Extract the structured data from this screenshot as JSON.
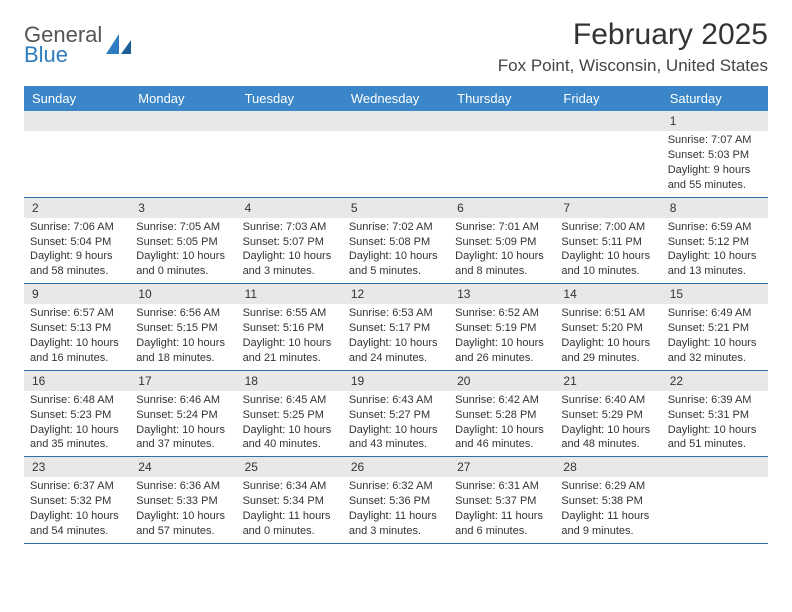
{
  "logo": {
    "line1": "General",
    "line2": "Blue"
  },
  "title": "February 2025",
  "location": "Fox Point, Wisconsin, United States",
  "colors": {
    "header_bg": "#3a86c8",
    "header_text": "#ffffff",
    "daynum_bg": "#e8e8e8",
    "row_border": "#2f6ea8",
    "logo_gray": "#555555",
    "logo_blue": "#2f7bbf",
    "body_text": "#333333"
  },
  "weekdays": [
    "Sunday",
    "Monday",
    "Tuesday",
    "Wednesday",
    "Thursday",
    "Friday",
    "Saturday"
  ],
  "weeks": [
    [
      null,
      null,
      null,
      null,
      null,
      null,
      {
        "n": "1",
        "sunrise": "Sunrise: 7:07 AM",
        "sunset": "Sunset: 5:03 PM",
        "daylight": "Daylight: 9 hours and 55 minutes."
      }
    ],
    [
      {
        "n": "2",
        "sunrise": "Sunrise: 7:06 AM",
        "sunset": "Sunset: 5:04 PM",
        "daylight": "Daylight: 9 hours and 58 minutes."
      },
      {
        "n": "3",
        "sunrise": "Sunrise: 7:05 AM",
        "sunset": "Sunset: 5:05 PM",
        "daylight": "Daylight: 10 hours and 0 minutes."
      },
      {
        "n": "4",
        "sunrise": "Sunrise: 7:03 AM",
        "sunset": "Sunset: 5:07 PM",
        "daylight": "Daylight: 10 hours and 3 minutes."
      },
      {
        "n": "5",
        "sunrise": "Sunrise: 7:02 AM",
        "sunset": "Sunset: 5:08 PM",
        "daylight": "Daylight: 10 hours and 5 minutes."
      },
      {
        "n": "6",
        "sunrise": "Sunrise: 7:01 AM",
        "sunset": "Sunset: 5:09 PM",
        "daylight": "Daylight: 10 hours and 8 minutes."
      },
      {
        "n": "7",
        "sunrise": "Sunrise: 7:00 AM",
        "sunset": "Sunset: 5:11 PM",
        "daylight": "Daylight: 10 hours and 10 minutes."
      },
      {
        "n": "8",
        "sunrise": "Sunrise: 6:59 AM",
        "sunset": "Sunset: 5:12 PM",
        "daylight": "Daylight: 10 hours and 13 minutes."
      }
    ],
    [
      {
        "n": "9",
        "sunrise": "Sunrise: 6:57 AM",
        "sunset": "Sunset: 5:13 PM",
        "daylight": "Daylight: 10 hours and 16 minutes."
      },
      {
        "n": "10",
        "sunrise": "Sunrise: 6:56 AM",
        "sunset": "Sunset: 5:15 PM",
        "daylight": "Daylight: 10 hours and 18 minutes."
      },
      {
        "n": "11",
        "sunrise": "Sunrise: 6:55 AM",
        "sunset": "Sunset: 5:16 PM",
        "daylight": "Daylight: 10 hours and 21 minutes."
      },
      {
        "n": "12",
        "sunrise": "Sunrise: 6:53 AM",
        "sunset": "Sunset: 5:17 PM",
        "daylight": "Daylight: 10 hours and 24 minutes."
      },
      {
        "n": "13",
        "sunrise": "Sunrise: 6:52 AM",
        "sunset": "Sunset: 5:19 PM",
        "daylight": "Daylight: 10 hours and 26 minutes."
      },
      {
        "n": "14",
        "sunrise": "Sunrise: 6:51 AM",
        "sunset": "Sunset: 5:20 PM",
        "daylight": "Daylight: 10 hours and 29 minutes."
      },
      {
        "n": "15",
        "sunrise": "Sunrise: 6:49 AM",
        "sunset": "Sunset: 5:21 PM",
        "daylight": "Daylight: 10 hours and 32 minutes."
      }
    ],
    [
      {
        "n": "16",
        "sunrise": "Sunrise: 6:48 AM",
        "sunset": "Sunset: 5:23 PM",
        "daylight": "Daylight: 10 hours and 35 minutes."
      },
      {
        "n": "17",
        "sunrise": "Sunrise: 6:46 AM",
        "sunset": "Sunset: 5:24 PM",
        "daylight": "Daylight: 10 hours and 37 minutes."
      },
      {
        "n": "18",
        "sunrise": "Sunrise: 6:45 AM",
        "sunset": "Sunset: 5:25 PM",
        "daylight": "Daylight: 10 hours and 40 minutes."
      },
      {
        "n": "19",
        "sunrise": "Sunrise: 6:43 AM",
        "sunset": "Sunset: 5:27 PM",
        "daylight": "Daylight: 10 hours and 43 minutes."
      },
      {
        "n": "20",
        "sunrise": "Sunrise: 6:42 AM",
        "sunset": "Sunset: 5:28 PM",
        "daylight": "Daylight: 10 hours and 46 minutes."
      },
      {
        "n": "21",
        "sunrise": "Sunrise: 6:40 AM",
        "sunset": "Sunset: 5:29 PM",
        "daylight": "Daylight: 10 hours and 48 minutes."
      },
      {
        "n": "22",
        "sunrise": "Sunrise: 6:39 AM",
        "sunset": "Sunset: 5:31 PM",
        "daylight": "Daylight: 10 hours and 51 minutes."
      }
    ],
    [
      {
        "n": "23",
        "sunrise": "Sunrise: 6:37 AM",
        "sunset": "Sunset: 5:32 PM",
        "daylight": "Daylight: 10 hours and 54 minutes."
      },
      {
        "n": "24",
        "sunrise": "Sunrise: 6:36 AM",
        "sunset": "Sunset: 5:33 PM",
        "daylight": "Daylight: 10 hours and 57 minutes."
      },
      {
        "n": "25",
        "sunrise": "Sunrise: 6:34 AM",
        "sunset": "Sunset: 5:34 PM",
        "daylight": "Daylight: 11 hours and 0 minutes."
      },
      {
        "n": "26",
        "sunrise": "Sunrise: 6:32 AM",
        "sunset": "Sunset: 5:36 PM",
        "daylight": "Daylight: 11 hours and 3 minutes."
      },
      {
        "n": "27",
        "sunrise": "Sunrise: 6:31 AM",
        "sunset": "Sunset: 5:37 PM",
        "daylight": "Daylight: 11 hours and 6 minutes."
      },
      {
        "n": "28",
        "sunrise": "Sunrise: 6:29 AM",
        "sunset": "Sunset: 5:38 PM",
        "daylight": "Daylight: 11 hours and 9 minutes."
      },
      null
    ]
  ]
}
